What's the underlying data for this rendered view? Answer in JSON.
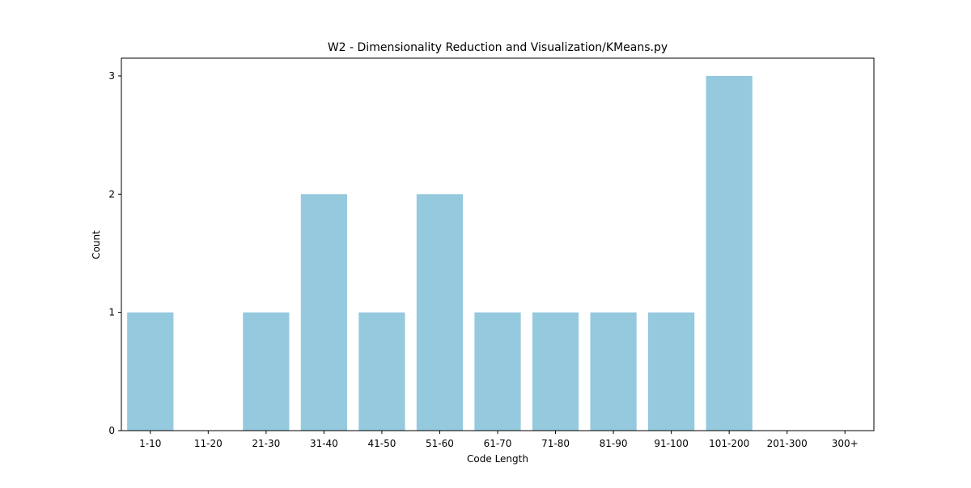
{
  "chart_data": {
    "type": "bar",
    "title": "W2 - Dimensionality Reduction and Visualization/KMeans.py",
    "xlabel": "Code Length",
    "ylabel": "Count",
    "categories": [
      "1-10",
      "11-20",
      "21-30",
      "31-40",
      "41-50",
      "51-60",
      "61-70",
      "71-80",
      "81-90",
      "91-100",
      "101-200",
      "201-300",
      "300+"
    ],
    "values": [
      1,
      0,
      1,
      2,
      1,
      2,
      1,
      1,
      1,
      1,
      3,
      0,
      0
    ],
    "ylim": [
      0,
      3.15
    ],
    "yticks": [
      0,
      1,
      2,
      3
    ],
    "grid": false,
    "bar_color": "#95c9de"
  }
}
